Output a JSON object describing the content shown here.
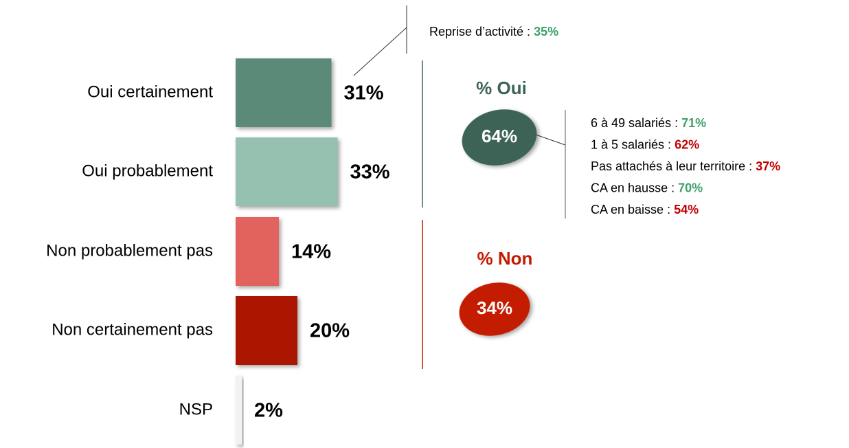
{
  "chart_data": {
    "type": "bar",
    "orientation": "horizontal",
    "categories": [
      "Oui certainement",
      "Oui probablement",
      "Non probablement pas",
      "Non certainement pas",
      "NSP"
    ],
    "values": [
      31,
      33,
      14,
      20,
      2
    ],
    "value_labels": [
      "31%",
      "33%",
      "14%",
      "20%",
      "2%"
    ],
    "colors": [
      "#5b8a78",
      "#96c1b1",
      "#e2645d",
      "#aa1800",
      "#f2f2f2"
    ],
    "annotation": {
      "text": "Reprise d’activité : ",
      "value_label": "35%",
      "color": "#3fa06b"
    },
    "groups": [
      {
        "name": "% Oui",
        "value_label": "64%",
        "color": "#3d6356",
        "details": [
          {
            "text": "6 à 49 salariés : ",
            "value_label": "71%",
            "color": "#3fa06b"
          },
          {
            "text": "1 à 5 salariés : ",
            "value_label": "62%",
            "color": "#c00000"
          },
          {
            "text": "Pas attachés à leur territoire : ",
            "value_label": "37%",
            "color": "#c00000"
          },
          {
            "text": "CA en hausse : ",
            "value_label": "70%",
            "color": "#3fa06b"
          },
          {
            "text": "CA en baisse : ",
            "value_label": "54%",
            "color": "#c00000"
          }
        ]
      },
      {
        "name": "% Non",
        "value_label": "34%",
        "color": "#c41a00",
        "details": []
      }
    ]
  }
}
